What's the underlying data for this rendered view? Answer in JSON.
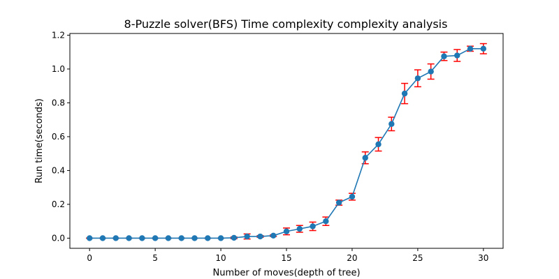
{
  "chart_data": {
    "type": "line",
    "title": "8-Puzzle solver(BFS) Time complexity complexity analysis",
    "xlabel": "Number of moves(depth of tree)",
    "ylabel": "Run time(seconds)",
    "xlim": [
      -1.5,
      31.5
    ],
    "ylim": [
      -0.06,
      1.21
    ],
    "xticks": [
      0,
      5,
      10,
      15,
      20,
      25,
      30
    ],
    "yticks": [
      0.0,
      0.2,
      0.4,
      0.6,
      0.8,
      1.0,
      1.2
    ],
    "xtick_labels": [
      "0",
      "5",
      "10",
      "15",
      "20",
      "25",
      "30"
    ],
    "ytick_labels": [
      "0.0",
      "0.2",
      "0.4",
      "0.6",
      "0.8",
      "1.0",
      "1.2"
    ],
    "grid": false,
    "line_color": "#1f77b4",
    "errorbar_color": "#ff0000",
    "series": [
      {
        "x": [
          0,
          1,
          2,
          3,
          4,
          5,
          6,
          7,
          8,
          9,
          10,
          11,
          12,
          13,
          14,
          15,
          16,
          17,
          18,
          19,
          20,
          21,
          22,
          23,
          24,
          25,
          26,
          27,
          28,
          29,
          30
        ],
        "values": [
          0.0,
          0.0,
          0.0,
          0.0,
          0.0,
          0.0,
          0.0,
          0.0,
          0.0,
          0.0,
          0.0,
          0.002,
          0.01,
          0.01,
          0.015,
          0.04,
          0.055,
          0.07,
          0.1,
          0.21,
          0.245,
          0.475,
          0.555,
          0.675,
          0.855,
          0.945,
          0.985,
          1.075,
          1.08,
          1.12,
          1.12
        ],
        "errors": [
          0.0,
          0.0,
          0.0,
          0.0,
          0.0,
          0.0,
          0.0,
          0.0,
          0.0,
          0.0,
          0.0,
          0.005,
          0.015,
          0.005,
          0.005,
          0.02,
          0.02,
          0.025,
          0.025,
          0.015,
          0.02,
          0.035,
          0.04,
          0.04,
          0.06,
          0.05,
          0.045,
          0.025,
          0.035,
          0.015,
          0.03
        ]
      }
    ]
  }
}
